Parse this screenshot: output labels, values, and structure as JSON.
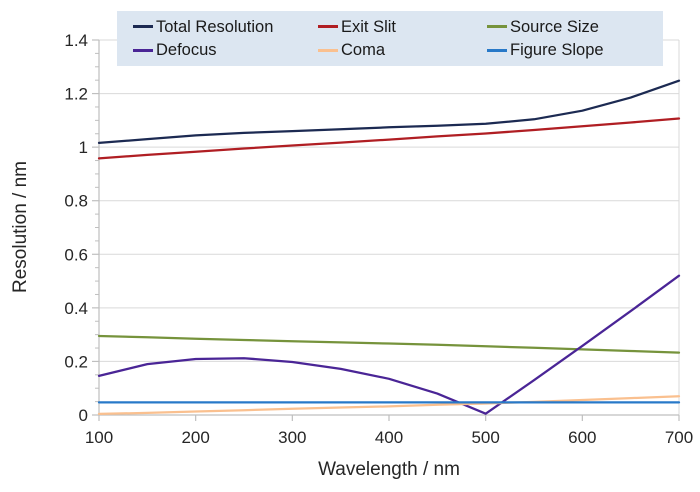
{
  "chart_data": {
    "type": "line",
    "title": "",
    "xlabel": "Wavelength / nm",
    "ylabel": "Resolution / nm",
    "xlim": [
      100,
      700
    ],
    "ylim": [
      0,
      1.4
    ],
    "x_ticks": [
      100,
      200,
      300,
      400,
      500,
      600,
      700
    ],
    "x_tick_labels": [
      "100",
      "200",
      "300",
      "400",
      "500",
      "600",
      "700"
    ],
    "y_ticks": [
      0,
      0.2,
      0.4,
      0.6,
      0.8,
      1.0,
      1.2,
      1.4
    ],
    "y_tick_labels": [
      "0",
      "0.2",
      "0.4",
      "0.6",
      "0.8",
      "1",
      "1.2",
      "1.4"
    ],
    "y_minor_tick_step": 0.05,
    "grid": "horizontal major gridlines only",
    "legend_position": "top-inside",
    "x": [
      100,
      150,
      200,
      250,
      300,
      350,
      400,
      450,
      500,
      550,
      600,
      650,
      700
    ],
    "series": [
      {
        "name": "Total Resolution",
        "color": "#1c2a52",
        "values": [
          1.016,
          1.03,
          1.044,
          1.053,
          1.06,
          1.067,
          1.074,
          1.08,
          1.087,
          1.104,
          1.136,
          1.185,
          1.248
        ]
      },
      {
        "name": "Exit Slit",
        "color": "#b01e23",
        "values": [
          0.958,
          0.971,
          0.983,
          0.995,
          1.006,
          1.017,
          1.028,
          1.04,
          1.051,
          1.064,
          1.078,
          1.092,
          1.107
        ]
      },
      {
        "name": "Source Size",
        "color": "#76933c",
        "values": [
          0.295,
          0.29,
          0.285,
          0.28,
          0.275,
          0.271,
          0.267,
          0.262,
          0.257,
          0.251,
          0.245,
          0.239,
          0.233
        ]
      },
      {
        "name": "Defocus",
        "color": "#4a2596",
        "values": [
          0.146,
          0.19,
          0.209,
          0.212,
          0.198,
          0.172,
          0.135,
          0.08,
          0.005,
          0.13,
          0.258,
          0.388,
          0.52
        ]
      },
      {
        "name": "Coma",
        "color": "#fac08f",
        "values": [
          0.004,
          0.008,
          0.013,
          0.018,
          0.023,
          0.028,
          0.032,
          0.038,
          0.043,
          0.049,
          0.056,
          0.063,
          0.07
        ]
      },
      {
        "name": "Figure Slope",
        "color": "#2879c8",
        "values": [
          0.047,
          0.047,
          0.047,
          0.047,
          0.047,
          0.047,
          0.047,
          0.047,
          0.047,
          0.047,
          0.047,
          0.047,
          0.047
        ]
      }
    ],
    "colors": {
      "grid": "#d9d9d9",
      "axis": "#bfbfbf",
      "tick_text": "#262626",
      "legend_bg": "#dce6f1"
    }
  }
}
